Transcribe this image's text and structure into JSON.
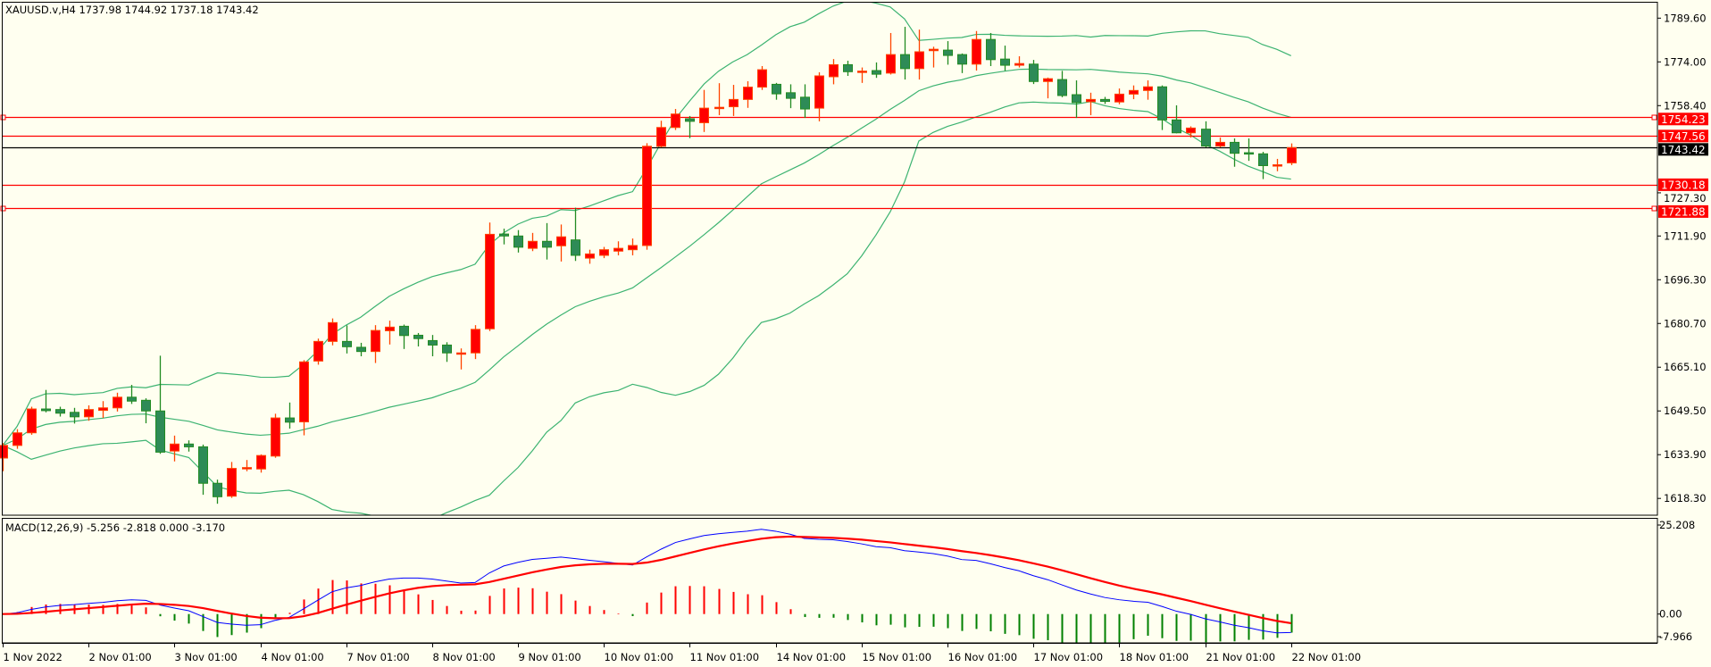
{
  "header": {
    "symbol_info": "XAUUSD.v,H4  1737.98 1744.92 1737.18 1743.42",
    "macd_info": "MACD(12,26,9) -5.256 -2.818 0.000 -3.170"
  },
  "colors": {
    "background": "#FFFFF0",
    "bull_fill": "#FF0000",
    "bull_edge": "#FF4500",
    "bear_fill": "#2E8B57",
    "bear_edge": "#228B22",
    "bands": "#3CB371",
    "level_line": "#FF0000",
    "bid_line": "#000000",
    "macd_line": "#0000FF",
    "signal_line": "#FF0000"
  },
  "chart_data": {
    "type": "candlestick",
    "symbol": "XAUUSD.v",
    "timeframe": "H4",
    "ylim": [
      1616.4,
      1795.5
    ],
    "y_ticks": [
      "1789.60",
      "1774.00",
      "1758.40",
      "1727.30",
      "1711.90",
      "1696.30",
      "1680.70",
      "1665.10",
      "1649.50",
      "1633.90",
      "1618.30"
    ],
    "x_ticks": [
      {
        "bar": 0,
        "label": "1 Nov 2022"
      },
      {
        "bar": 6,
        "label": "2 Nov 01:00"
      },
      {
        "bar": 12,
        "label": "3 Nov 01:00"
      },
      {
        "bar": 18,
        "label": "4 Nov 01:00"
      },
      {
        "bar": 24,
        "label": "7 Nov 01:00"
      },
      {
        "bar": 30,
        "label": "8 Nov 01:00"
      },
      {
        "bar": 36,
        "label": "9 Nov 01:00"
      },
      {
        "bar": 42,
        "label": "10 Nov 01:00"
      },
      {
        "bar": 48,
        "label": "11 Nov 01:00"
      },
      {
        "bar": 54,
        "label": "14 Nov 01:00"
      },
      {
        "bar": 60,
        "label": "15 Nov 01:00"
      },
      {
        "bar": 66,
        "label": "16 Nov 01:00"
      },
      {
        "bar": 72,
        "label": "17 Nov 01:00"
      },
      {
        "bar": 78,
        "label": "18 Nov 01:00"
      },
      {
        "bar": 84,
        "label": "21 Nov 01:00"
      },
      {
        "bar": 90,
        "label": "22 Nov 01:00"
      }
    ],
    "ohlc": [
      [
        1632.7,
        1638,
        1628,
        1637.2
      ],
      [
        1637.2,
        1643,
        1636,
        1641.7
      ],
      [
        1641.7,
        1651,
        1641,
        1650.2
      ],
      [
        1650.2,
        1657,
        1649,
        1649.6
      ],
      [
        1650,
        1651,
        1647.5,
        1648.7
      ],
      [
        1649,
        1650.6,
        1645,
        1647.4
      ],
      [
        1647.4,
        1651.5,
        1646,
        1650
      ],
      [
        1649.7,
        1653,
        1647,
        1650.6
      ],
      [
        1650.6,
        1656,
        1649.3,
        1654.4
      ],
      [
        1654.4,
        1658.8,
        1652,
        1653
      ],
      [
        1653.3,
        1654,
        1645.1,
        1649.5
      ],
      [
        1649.5,
        1669.2,
        1634.2,
        1634.8
      ],
      [
        1635.2,
        1640.7,
        1631.5,
        1637.7
      ],
      [
        1637.7,
        1639,
        1635,
        1636.7
      ],
      [
        1636.7,
        1637.5,
        1619.6,
        1623.7
      ],
      [
        1623.7,
        1625,
        1616.4,
        1618.9
      ],
      [
        1619.1,
        1631.3,
        1618.5,
        1629
      ],
      [
        1629,
        1632,
        1628,
        1629.3
      ],
      [
        1628.8,
        1634,
        1627.5,
        1633.6
      ],
      [
        1633.4,
        1648.5,
        1632.8,
        1647
      ],
      [
        1647,
        1652.5,
        1643.2,
        1645.5
      ],
      [
        1645.6,
        1667.6,
        1640.8,
        1667
      ],
      [
        1667.3,
        1675.3,
        1666,
        1674.3
      ],
      [
        1674.3,
        1682.5,
        1672.9,
        1681
      ],
      [
        1674.3,
        1680,
        1670,
        1672.4
      ],
      [
        1672.2,
        1673.8,
        1669,
        1670.7
      ],
      [
        1670.7,
        1680.1,
        1666.6,
        1678.2
      ],
      [
        1678.1,
        1681.7,
        1673.2,
        1679.4
      ],
      [
        1679.7,
        1680.3,
        1671.6,
        1676.4
      ],
      [
        1676.5,
        1677.3,
        1672.5,
        1675.3
      ],
      [
        1674.6,
        1676.6,
        1669,
        1673
      ],
      [
        1673,
        1674,
        1667,
        1670.2
      ],
      [
        1670.1,
        1671.8,
        1664.3,
        1670.2
      ],
      [
        1670.2,
        1680.1,
        1668,
        1678.6
      ],
      [
        1678.8,
        1716.7,
        1678,
        1712.5
      ],
      [
        1712.6,
        1714.5,
        1708.9,
        1711.9
      ],
      [
        1711.9,
        1714,
        1706,
        1707.9
      ],
      [
        1707.5,
        1713,
        1706.5,
        1710
      ],
      [
        1710,
        1716.5,
        1703.5,
        1707.9
      ],
      [
        1708.4,
        1716,
        1702.8,
        1711.6
      ],
      [
        1710.5,
        1722,
        1703,
        1705
      ],
      [
        1704,
        1707,
        1702,
        1705.5
      ],
      [
        1705,
        1708,
        1704,
        1707
      ],
      [
        1706.5,
        1710,
        1705,
        1707.5
      ],
      [
        1707,
        1711,
        1705,
        1708.5
      ],
      [
        1708.5,
        1745,
        1707,
        1743.9
      ],
      [
        1743.9,
        1753,
        1743.5,
        1750.6
      ],
      [
        1750.6,
        1757.2,
        1749.7,
        1755.4
      ],
      [
        1753.7,
        1754.7,
        1746.8,
        1752.8
      ],
      [
        1752.3,
        1764,
        1749,
        1757.5
      ],
      [
        1757.6,
        1766.4,
        1755,
        1757.8
      ],
      [
        1758,
        1765.8,
        1754.7,
        1760.6
      ],
      [
        1760.6,
        1767.1,
        1757.6,
        1765
      ],
      [
        1765,
        1772.5,
        1764,
        1771.2
      ],
      [
        1766,
        1766.5,
        1760.5,
        1762.6
      ],
      [
        1763,
        1766,
        1757.5,
        1761
      ],
      [
        1761.4,
        1766,
        1754,
        1757.2
      ],
      [
        1757.5,
        1770.3,
        1752.8,
        1769
      ],
      [
        1768.7,
        1775,
        1766,
        1773
      ],
      [
        1773,
        1774.4,
        1769,
        1770.5
      ],
      [
        1770.5,
        1772,
        1766.5,
        1770.7
      ],
      [
        1770.9,
        1773.8,
        1768.3,
        1769.6
      ],
      [
        1770,
        1784.3,
        1769.5,
        1776.6
      ],
      [
        1776.6,
        1786.5,
        1767.7,
        1771.6
      ],
      [
        1771.6,
        1785.5,
        1767.7,
        1777.6
      ],
      [
        1778,
        1779.4,
        1772,
        1778.5
      ],
      [
        1778.2,
        1781.4,
        1773,
        1776.3
      ],
      [
        1776.6,
        1777,
        1770,
        1773.2
      ],
      [
        1773.2,
        1785,
        1770.9,
        1782
      ],
      [
        1782,
        1784.3,
        1772.5,
        1774.8
      ],
      [
        1775,
        1779.8,
        1770.8,
        1772.8
      ],
      [
        1772.8,
        1776,
        1772,
        1773.4
      ],
      [
        1773.2,
        1774.7,
        1766.1,
        1767
      ],
      [
        1767,
        1768.4,
        1761,
        1768
      ],
      [
        1767.7,
        1770.8,
        1761.4,
        1762
      ],
      [
        1762.3,
        1767.4,
        1754,
        1759.5
      ],
      [
        1759.8,
        1763,
        1755,
        1760.6
      ],
      [
        1760.6,
        1761.5,
        1759,
        1759.9
      ],
      [
        1759.7,
        1764.5,
        1758.9,
        1762.5
      ],
      [
        1762.5,
        1765.6,
        1760.7,
        1763.8
      ],
      [
        1763.8,
        1767.4,
        1760.5,
        1765.1
      ],
      [
        1765.1,
        1765.6,
        1749.7,
        1753.3
      ],
      [
        1753.3,
        1758.5,
        1748.5,
        1748.7
      ],
      [
        1748.7,
        1751,
        1747,
        1750.4
      ],
      [
        1750,
        1752.8,
        1743.5,
        1744
      ],
      [
        1744,
        1747,
        1743.5,
        1745.3
      ],
      [
        1745.3,
        1746.7,
        1736.6,
        1741.4
      ],
      [
        1741.6,
        1746.7,
        1738.7,
        1741.4
      ],
      [
        1741.2,
        1741.9,
        1732.2,
        1737
      ],
      [
        1737,
        1739.4,
        1735,
        1737.3
      ],
      [
        1737.98,
        1744.92,
        1737.18,
        1743.42
      ]
    ],
    "bollinger": {
      "period": 20,
      "deviation": 2
    },
    "levels": [
      {
        "price": 1754.23,
        "label": "1754.23",
        "kind": "level",
        "anchors": true
      },
      {
        "price": 1747.56,
        "label": "1747.56",
        "kind": "level",
        "anchors": false
      },
      {
        "price": 1743.42,
        "label": "1743.42",
        "kind": "bid",
        "anchors": false
      },
      {
        "price": 1730.18,
        "label": "1730.18",
        "kind": "level",
        "anchors": false
      },
      {
        "price": 1721.88,
        "label": "1721.88",
        "kind": "level",
        "anchors": true
      }
    ],
    "macd": {
      "fast": 12,
      "slow": 26,
      "signal": 9,
      "ylim": [
        -7.966,
        25.208
      ],
      "y_ticks": [
        "25.208",
        "0.00",
        "-7.966"
      ]
    }
  }
}
